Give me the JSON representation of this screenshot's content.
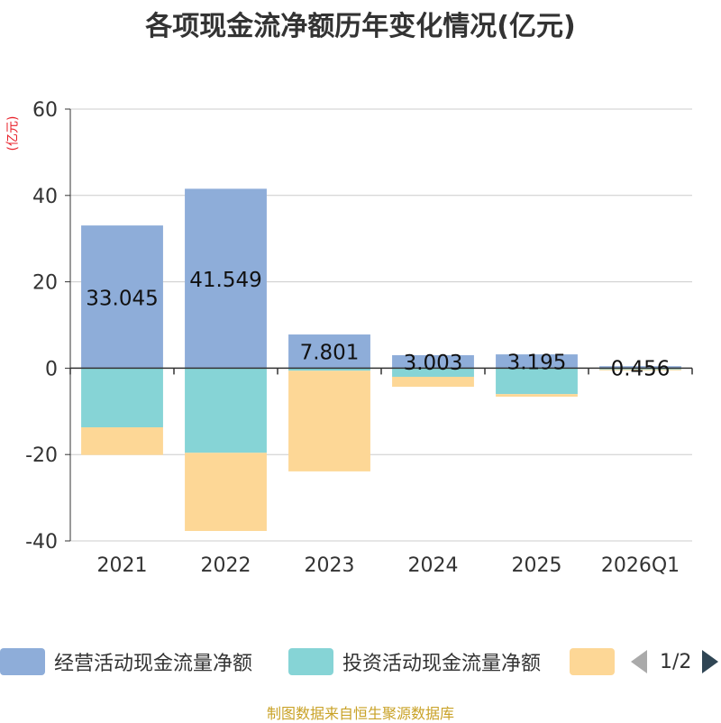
{
  "chart_data": {
    "type": "bar",
    "stacked": true,
    "title": "各项现金流净额历年变化情况(亿元)",
    "ylabel": "(亿元)",
    "categories": [
      "2021",
      "2022",
      "2023",
      "2024",
      "2025",
      "2026Q1"
    ],
    "ylim": [
      -40,
      60
    ],
    "yticks": [
      -40,
      -20,
      0,
      20,
      40,
      60
    ],
    "grid": true,
    "series": [
      {
        "name": "经营活动现金流量净额",
        "color": "#8eadd9",
        "values": [
          33.045,
          41.549,
          7.801,
          3.003,
          3.195,
          0.456
        ]
      },
      {
        "name": "投资活动现金流量净额",
        "color": "#86d4d6",
        "values": [
          -13.7,
          -19.6,
          -0.6,
          -2.0,
          -6.0,
          -0.3
        ]
      },
      {
        "name": "",
        "color": "#fdd796",
        "values": [
          -6.4,
          -18.1,
          -23.3,
          -2.3,
          -0.6,
          -0.2
        ]
      }
    ],
    "data_labels": [
      "33.045",
      "41.549",
      "7.801",
      "3.003",
      "3.195",
      "0.456"
    ],
    "legend_position": "bottom"
  },
  "legend": {
    "page_text": "1/2"
  },
  "source": "制图数据来自恒生聚源数据库"
}
